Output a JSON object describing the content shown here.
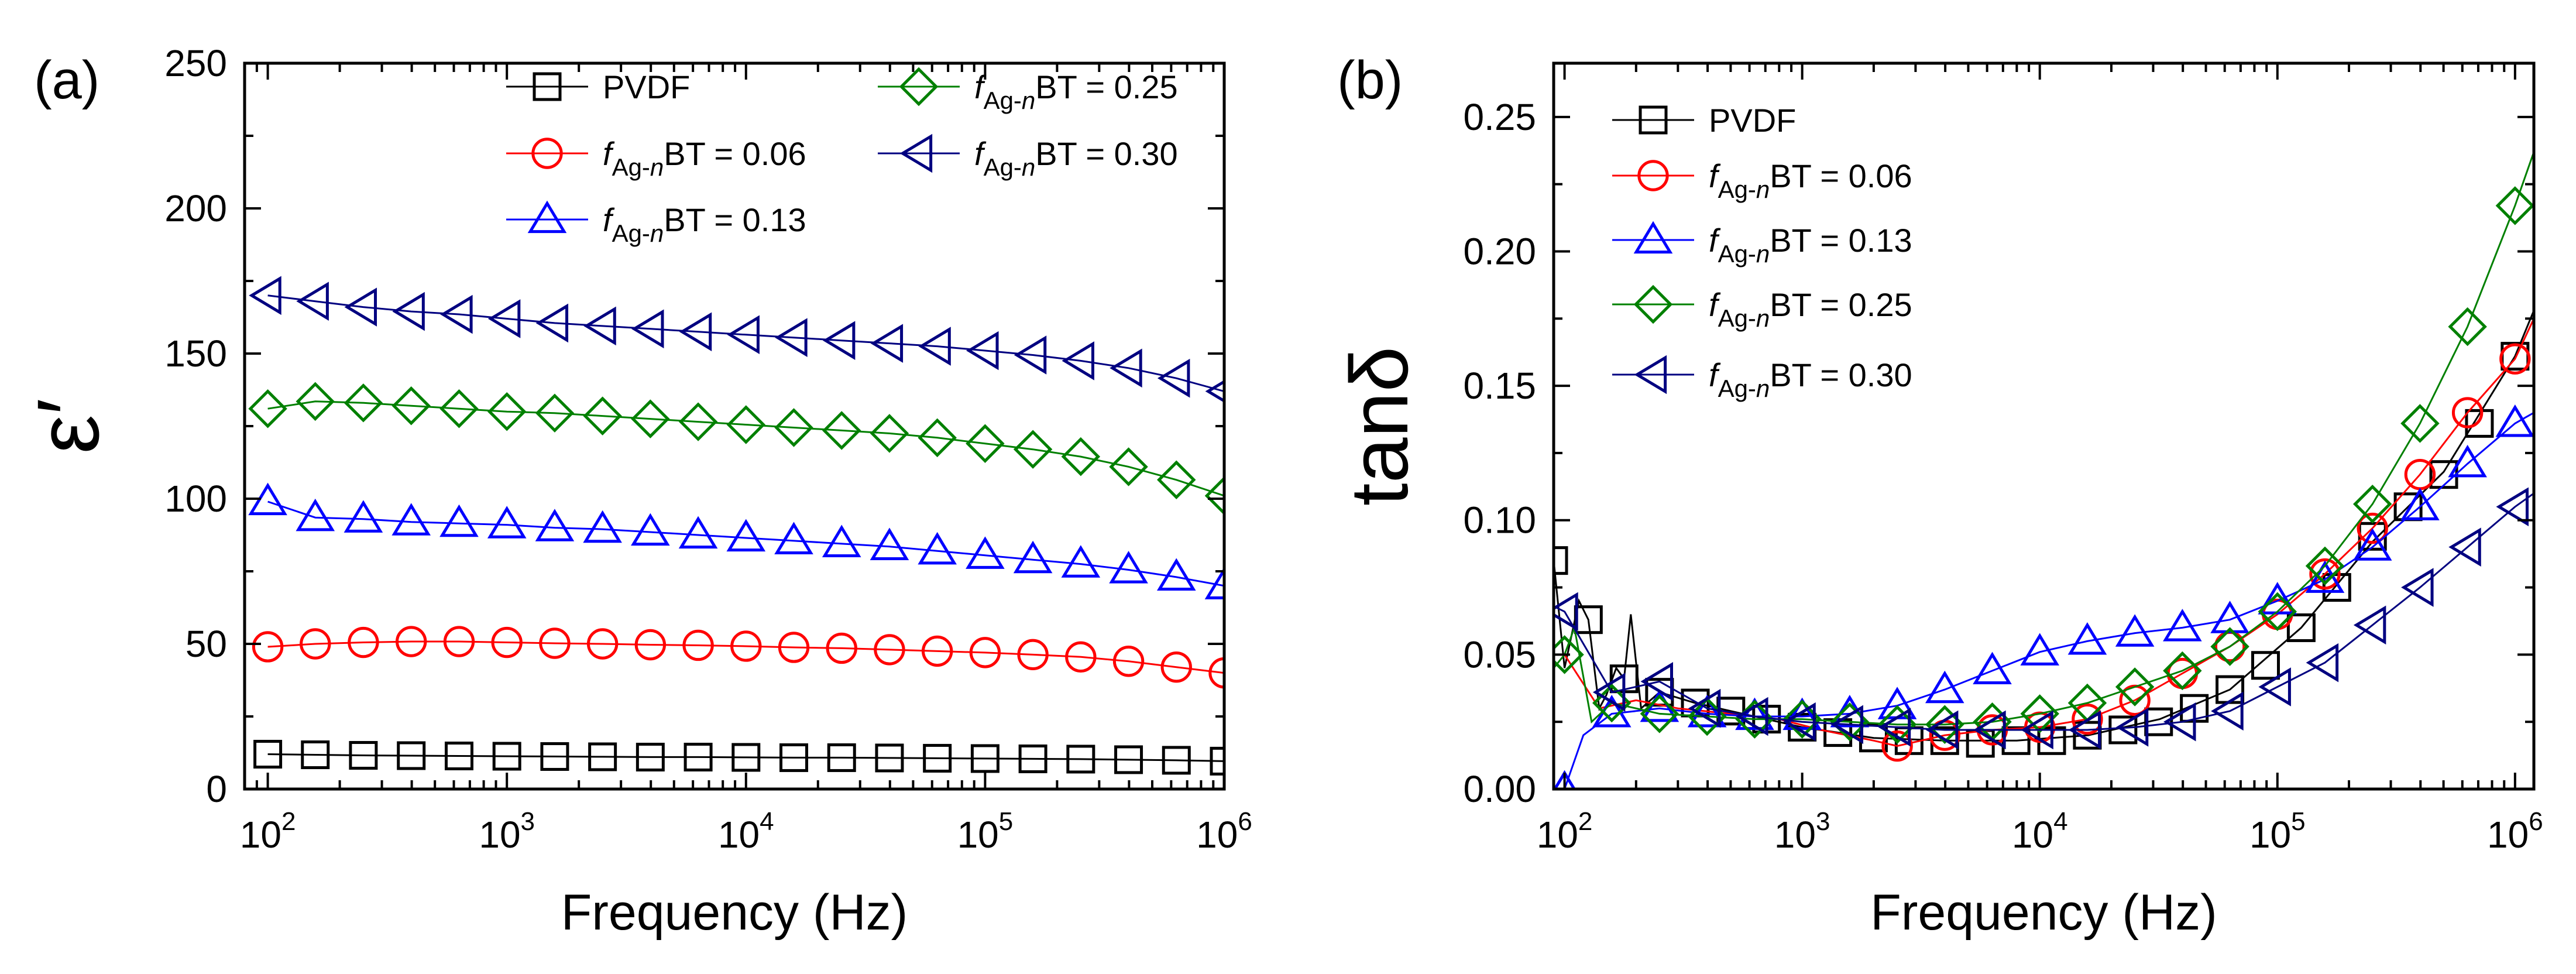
{
  "chart_data": [
    {
      "panel_label": "(a)",
      "type": "line",
      "xlabel": "Frequency (Hz)",
      "ylabel": "ε′",
      "xscale": "log",
      "xlim": [
        80,
        1000000
      ],
      "ylim": [
        0,
        250
      ],
      "xticks": [
        100,
        1000,
        10000,
        100000,
        1000000
      ],
      "yticks": [
        0,
        50,
        100,
        150,
        200,
        250
      ],
      "legend": {
        "placement": "top",
        "columns": 2
      },
      "series": [
        {
          "name": "PVDF",
          "name_parts": [
            "PVDF",
            "",
            "",
            ""
          ],
          "marker": "square",
          "color": "#000000",
          "x": [
            100,
            158,
            251,
            398,
            631,
            1000,
            1585,
            2512,
            3981,
            6310,
            10000,
            15849,
            25119,
            39811,
            63096,
            100000,
            158489,
            251189,
            398107,
            630957,
            1000000
          ],
          "y": [
            12,
            11.8,
            11.6,
            11.5,
            11.4,
            11.3,
            11.2,
            11.1,
            11.0,
            11.0,
            10.9,
            10.8,
            10.8,
            10.7,
            10.6,
            10.5,
            10.4,
            10.3,
            10.1,
            9.9,
            9.6
          ]
        },
        {
          "name": "f Ag-nBT = 0.06",
          "name_parts": [
            "f",
            "Ag-",
            "n",
            "BT = 0.06"
          ],
          "marker": "circle",
          "color": "#ff0000",
          "x": [
            100,
            158,
            251,
            398,
            631,
            1000,
            1585,
            2512,
            3981,
            6310,
            10000,
            15849,
            25119,
            39811,
            63096,
            100000,
            158489,
            251189,
            398107,
            630957,
            1000000
          ],
          "y": [
            49,
            50,
            50.5,
            50.8,
            50.8,
            50.5,
            50.2,
            50,
            49.7,
            49.5,
            49.2,
            48.8,
            48.5,
            48,
            47.5,
            47,
            46.3,
            45.5,
            44,
            42,
            40
          ]
        },
        {
          "name": "f Ag-nBT = 0.13",
          "name_parts": [
            "f",
            "Ag-",
            "n",
            "BT = 0.13"
          ],
          "marker": "triangle-up",
          "color": "#0000ff",
          "x": [
            100,
            158,
            251,
            398,
            631,
            1000,
            1585,
            2512,
            3981,
            6310,
            10000,
            15849,
            25119,
            39811,
            63096,
            100000,
            158489,
            251189,
            398107,
            630957,
            1000000
          ],
          "y": [
            99,
            93.5,
            93,
            92,
            91.5,
            91,
            90,
            89.5,
            88.5,
            87.5,
            86.5,
            85.5,
            84.5,
            83.5,
            82,
            80.5,
            79,
            77.5,
            75.5,
            73,
            70
          ]
        },
        {
          "name": "f Ag-nBT = 0.25",
          "name_parts": [
            "f",
            "Ag-",
            "n",
            "BT = 0.25"
          ],
          "marker": "diamond",
          "color": "#008000",
          "x": [
            100,
            158,
            251,
            398,
            631,
            1000,
            1585,
            2512,
            3981,
            6310,
            10000,
            15849,
            25119,
            39811,
            63096,
            100000,
            158489,
            251189,
            398107,
            630957,
            1000000
          ],
          "y": [
            131,
            133.5,
            133,
            132,
            131,
            130,
            129.5,
            128.5,
            127.5,
            126.5,
            125.5,
            124.5,
            123.5,
            122.5,
            121,
            119,
            117,
            114.5,
            111,
            106.5,
            101
          ]
        },
        {
          "name": "f Ag-nBT = 0.30",
          "name_parts": [
            "f",
            "Ag-",
            "n",
            "BT = 0.30"
          ],
          "marker": "triangle-left",
          "color": "#000080",
          "x": [
            100,
            158,
            251,
            398,
            631,
            1000,
            1585,
            2512,
            3981,
            6310,
            10000,
            15849,
            25119,
            39811,
            63096,
            100000,
            158489,
            251189,
            398107,
            630957,
            1000000
          ],
          "y": [
            170,
            168,
            166,
            164.5,
            163.5,
            162,
            160.5,
            159.5,
            158.5,
            157.5,
            156.5,
            155.5,
            154.5,
            153.5,
            152.5,
            151,
            149.5,
            147.5,
            145,
            141.5,
            137
          ]
        }
      ]
    },
    {
      "panel_label": "(b)",
      "type": "line",
      "xlabel": "Frequency (Hz)",
      "ylabel": "tanδ",
      "xscale": "log",
      "xlim": [
        90,
        1200000
      ],
      "ylim": [
        0,
        0.27
      ],
      "xticks": [
        100,
        1000,
        10000,
        100000,
        1000000
      ],
      "yticks": [
        0.0,
        0.05,
        0.1,
        0.15,
        0.2,
        0.25
      ],
      "legend": {
        "placement": "top-left",
        "columns": 1
      },
      "series": [
        {
          "name": "PVDF",
          "name_parts": [
            "PVDF",
            "",
            "",
            ""
          ],
          "marker": "square",
          "color": "#000000",
          "x": [
            90,
            126,
            178,
            251,
            355,
            501,
            708,
            1000,
            1413,
            1995,
            2818,
            3981,
            5623,
            7943,
            11220,
            15849,
            22387,
            31623,
            44668,
            63096,
            89125,
            125893,
            177828,
            251189,
            354813,
            501187,
            707946,
            1000000
          ],
          "y": [
            0.085,
            0.063,
            0.041,
            0.036,
            0.032,
            0.029,
            0.026,
            0.023,
            0.021,
            0.019,
            0.018,
            0.018,
            0.017,
            0.018,
            0.018,
            0.02,
            0.022,
            0.025,
            0.03,
            0.037,
            0.046,
            0.06,
            0.075,
            0.094,
            0.105,
            0.117,
            0.136,
            0.161
          ],
          "line_x": [
            90,
            100,
            115,
            126,
            140,
            150,
            165,
            178,
            190,
            210,
            251,
            355,
            501,
            708,
            1000,
            2000,
            4000,
            8000,
            16000,
            32000,
            63096,
            125893,
            251189,
            501187,
            1000000,
            1200000
          ],
          "line_y": [
            0.085,
            0.045,
            0.07,
            0.063,
            0.03,
            0.035,
            0.045,
            0.041,
            0.065,
            0.03,
            0.036,
            0.032,
            0.029,
            0.026,
            0.023,
            0.019,
            0.018,
            0.018,
            0.02,
            0.026,
            0.037,
            0.06,
            0.092,
            0.118,
            0.161,
            0.178
          ]
        },
        {
          "name": "f Ag-nBT = 0.06",
          "name_parts": [
            "f",
            "Ag-",
            "n",
            "BT = 0.06"
          ],
          "marker": "circle",
          "color": "#ff0000",
          "x": [
            2512,
            3981,
            6310,
            10000,
            15849,
            25119,
            39811,
            63096,
            100000,
            158489,
            251189,
            398107,
            630957,
            1000000
          ],
          "y": [
            0.016,
            0.02,
            0.022,
            0.023,
            0.026,
            0.033,
            0.043,
            0.053,
            0.065,
            0.08,
            0.097,
            0.117,
            0.14,
            0.16
          ],
          "line_x": [
            100,
            140,
            200,
            300,
            500,
            800,
            1200,
            2000,
            2512,
            3981,
            6310,
            10000,
            15849,
            25119,
            39811,
            63096,
            100000,
            158489,
            251189,
            398107,
            630957,
            1000000,
            1200000
          ],
          "line_y": [
            0.05,
            0.03,
            0.033,
            0.03,
            0.028,
            0.026,
            0.022,
            0.018,
            0.016,
            0.02,
            0.022,
            0.023,
            0.026,
            0.033,
            0.043,
            0.053,
            0.065,
            0.08,
            0.097,
            0.117,
            0.14,
            0.16,
            0.175
          ]
        },
        {
          "name": "f Ag-nBT = 0.13",
          "name_parts": [
            "f",
            "Ag-",
            "n",
            "BT = 0.13"
          ],
          "marker": "triangle-up",
          "color": "#0000ff",
          "x": [
            100,
            158,
            251,
            398,
            631,
            1000,
            1585,
            2512,
            3981,
            6310,
            10000,
            15849,
            25119,
            39811,
            63096,
            100000,
            158489,
            251189,
            398107,
            630957,
            1000000
          ],
          "y": [
            0.0,
            0.028,
            0.03,
            0.028,
            0.027,
            0.027,
            0.028,
            0.031,
            0.037,
            0.044,
            0.051,
            0.055,
            0.058,
            0.06,
            0.063,
            0.07,
            0.078,
            0.09,
            0.105,
            0.121,
            0.136
          ],
          "line_x": [
            100,
            120,
            158,
            251,
            398,
            631,
            1000,
            1585,
            2512,
            3981,
            6310,
            10000,
            15849,
            25119,
            39811,
            63096,
            100000,
            158489,
            251189,
            398107,
            630957,
            1000000,
            1200000
          ],
          "line_y": [
            0.0,
            0.02,
            0.028,
            0.03,
            0.028,
            0.027,
            0.027,
            0.028,
            0.031,
            0.037,
            0.044,
            0.051,
            0.055,
            0.058,
            0.06,
            0.063,
            0.07,
            0.078,
            0.09,
            0.105,
            0.121,
            0.136,
            0.14
          ]
        },
        {
          "name": "f Ag-nBT = 0.25",
          "name_parts": [
            "f",
            "Ag-",
            "n",
            "BT = 0.25"
          ],
          "marker": "diamond",
          "color": "#008000",
          "x": [
            100,
            158,
            251,
            398,
            631,
            1000,
            1585,
            2512,
            3981,
            6310,
            10000,
            15849,
            25119,
            39811,
            63096,
            100000,
            158489,
            251189,
            398107,
            630957,
            1000000
          ],
          "y": [
            0.05,
            0.032,
            0.028,
            0.027,
            0.026,
            0.026,
            0.025,
            0.024,
            0.024,
            0.025,
            0.028,
            0.032,
            0.038,
            0.044,
            0.053,
            0.066,
            0.083,
            0.106,
            0.136,
            0.172,
            0.217
          ],
          "line_x": [
            90,
            100,
            110,
            130,
            158,
            200,
            251,
            398,
            631,
            1000,
            1585,
            2512,
            3981,
            6310,
            10000,
            15849,
            25119,
            39811,
            63096,
            100000,
            158489,
            251189,
            398107,
            630957,
            1000000,
            1200000
          ],
          "line_y": [
            0.045,
            0.05,
            0.06,
            0.025,
            0.032,
            0.03,
            0.028,
            0.027,
            0.026,
            0.026,
            0.025,
            0.024,
            0.024,
            0.025,
            0.028,
            0.032,
            0.038,
            0.044,
            0.053,
            0.066,
            0.083,
            0.106,
            0.136,
            0.172,
            0.217,
            0.237
          ]
        },
        {
          "name": "f Ag-nBT = 0.30",
          "name_parts": [
            "f",
            "Ag-",
            "n",
            "BT = 0.30"
          ],
          "marker": "triangle-left",
          "color": "#000080",
          "x": [
            100,
            158,
            251,
            398,
            631,
            1000,
            1585,
            2512,
            3981,
            6310,
            10000,
            15849,
            25119,
            39811,
            63096,
            100000,
            158489,
            251189,
            398107,
            630957,
            1000000
          ],
          "y": [
            0.066,
            0.036,
            0.04,
            0.03,
            0.027,
            0.025,
            0.024,
            0.023,
            0.022,
            0.022,
            0.022,
            0.022,
            0.023,
            0.025,
            0.029,
            0.038,
            0.047,
            0.061,
            0.075,
            0.09,
            0.105
          ],
          "line_x": [
            90,
            100,
            158,
            251,
            398,
            631,
            1000,
            1585,
            2512,
            3981,
            6310,
            10000,
            15849,
            25119,
            39811,
            63096,
            100000,
            158489,
            251189,
            398107,
            630957,
            1000000,
            1200000
          ],
          "line_y": [
            0.068,
            0.066,
            0.036,
            0.04,
            0.03,
            0.027,
            0.025,
            0.024,
            0.023,
            0.022,
            0.022,
            0.022,
            0.022,
            0.023,
            0.025,
            0.029,
            0.038,
            0.047,
            0.061,
            0.075,
            0.09,
            0.105,
            0.11
          ]
        }
      ]
    }
  ]
}
